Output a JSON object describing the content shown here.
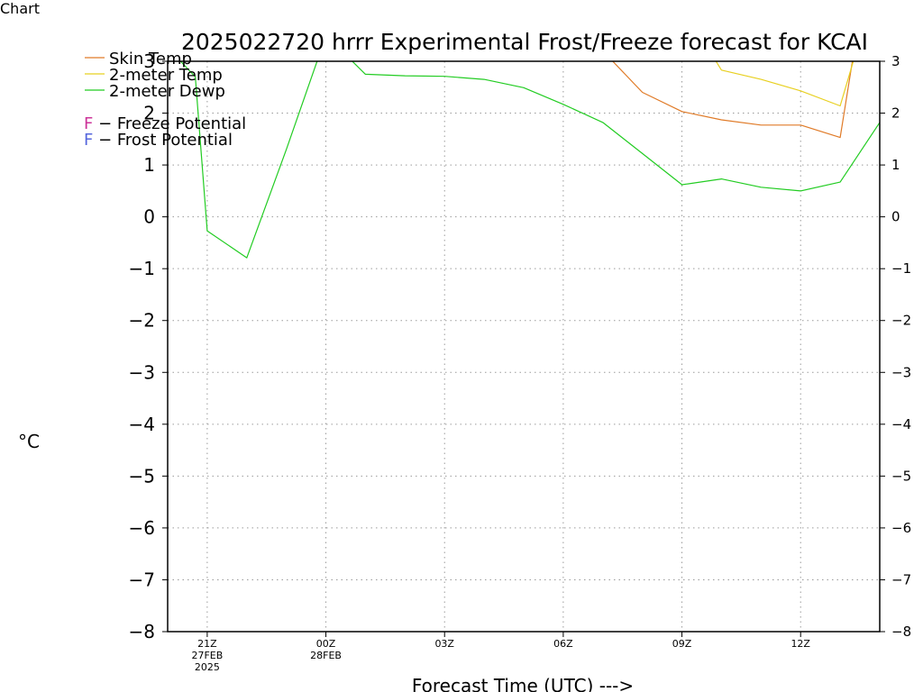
{
  "chart_data": {
    "type": "line",
    "title": "2025022720 hrrr Experimental Frost/Freeze forecast for KCAI",
    "ylabel": "°C",
    "xlabel": "Forecast Time (UTC) --->",
    "ylim": [
      -8,
      3
    ],
    "yticks": [
      3,
      2,
      1,
      0,
      -1,
      -2,
      -3,
      -4,
      -5,
      -6,
      -7,
      -8
    ],
    "ytick_labels": [
      "3",
      "2",
      "1",
      "0",
      "−1",
      "−2",
      "−3",
      "−4",
      "−5",
      "−6",
      "−7",
      "−8"
    ],
    "x_range_hours": [
      -1,
      17
    ],
    "x_ticks": [
      {
        "hour": 0,
        "lines": [
          "21Z",
          "27FEB",
          "2025"
        ]
      },
      {
        "hour": 3,
        "lines": [
          "00Z",
          "28FEB"
        ]
      },
      {
        "hour": 6,
        "lines": [
          "03Z"
        ]
      },
      {
        "hour": 9,
        "lines": [
          "06Z"
        ]
      },
      {
        "hour": 12,
        "lines": [
          "09Z"
        ]
      },
      {
        "hour": 15,
        "lines": [
          "12Z"
        ]
      }
    ],
    "grid": true,
    "legend_placement": "top-left",
    "series": [
      {
        "name": "Skin Temp",
        "color": "#e07b28",
        "x": [
          10,
          11,
          12,
          13,
          14,
          15,
          16,
          16.33
        ],
        "y": [
          3.2,
          2.4,
          2.03,
          1.87,
          1.77,
          1.77,
          1.53,
          3.1
        ]
      },
      {
        "name": "2-meter Temp",
        "color": "#e8d020",
        "x": [
          12.7,
          13,
          14,
          15,
          16,
          16.37
        ],
        "y": [
          3.2,
          2.83,
          2.65,
          2.43,
          2.14,
          3.1
        ]
      },
      {
        "name": "2-meter Dewp",
        "color": "#22cc22",
        "x": [
          -0.8,
          -0.3,
          0,
          1,
          2,
          2.8,
          3.6,
          4,
          5,
          6,
          7,
          8,
          9,
          10,
          11,
          12,
          13,
          14,
          15,
          16,
          17
        ],
        "y": [
          3.1,
          2.7,
          -0.27,
          -0.79,
          1.3,
          3.05,
          3.05,
          2.75,
          2.72,
          2.71,
          2.65,
          2.49,
          2.17,
          1.82,
          1.22,
          0.62,
          0.73,
          0.57,
          0.5,
          0.67,
          1.82
        ]
      }
    ],
    "legend_notes": [
      {
        "letter": "F",
        "text": " − Freeze Potential",
        "color": "#cc3399"
      },
      {
        "letter": "F",
        "text": " − Frost Potential",
        "color": "#5566dd"
      }
    ]
  }
}
